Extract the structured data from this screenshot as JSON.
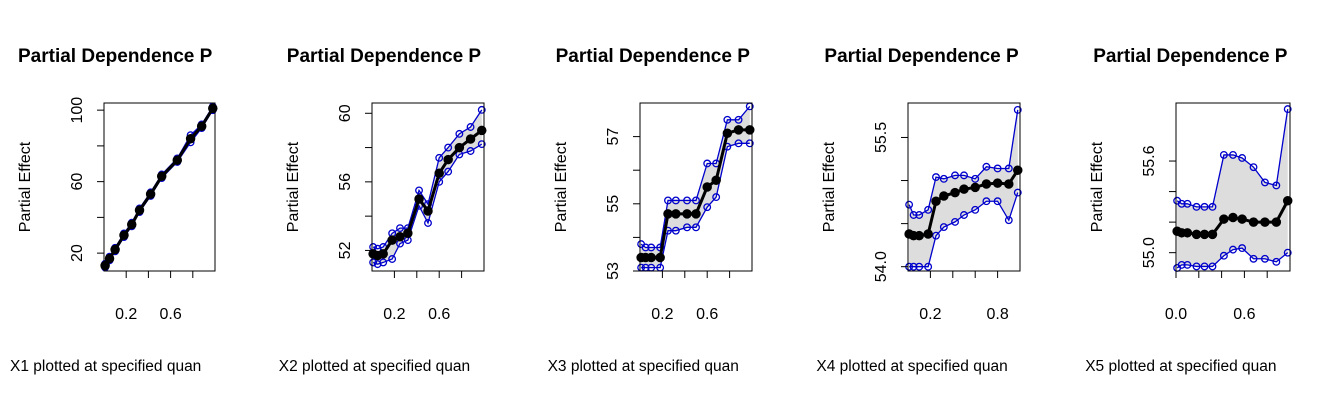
{
  "colors": {
    "ci_line": "#0000CC",
    "ci_fill": "#DDDDDD",
    "main": "#000000"
  },
  "chart_data": [
    {
      "type": "line",
      "title": "Partial Dependence P",
      "xlabel": "X1 plotted at specified quan",
      "ylabel": "Partial Effect",
      "xlim": [
        0.0,
        1.0
      ],
      "ylim": [
        10,
        104
      ],
      "xticks": [
        0.2,
        0.4,
        0.6,
        0.8
      ],
      "xtick_labels": [
        "0.2",
        "",
        "0.6",
        ""
      ],
      "yticks": [
        20,
        40,
        60,
        80,
        100
      ],
      "ytick_labels": [
        "20",
        "",
        "60",
        "",
        "100"
      ],
      "series": [
        {
          "x": [
            0.01,
            0.05,
            0.1,
            0.18,
            0.25,
            0.32,
            0.42,
            0.52,
            0.66,
            0.78,
            0.88,
            0.98
          ],
          "values": [
            13,
            17,
            22,
            30,
            36,
            44,
            53,
            63,
            72,
            84,
            91,
            101
          ]
        },
        {
          "x": [
            0.01,
            0.05,
            0.1,
            0.18,
            0.25,
            0.32,
            0.42,
            0.52,
            0.66,
            0.78,
            0.88,
            0.98
          ],
          "values": [
            12,
            16,
            21,
            29,
            35,
            43,
            52,
            62,
            71,
            82,
            90,
            100
          ]
        },
        {
          "x": [
            0.01,
            0.05,
            0.1,
            0.18,
            0.25,
            0.32,
            0.42,
            0.52,
            0.66,
            0.78,
            0.88,
            0.98
          ],
          "values": [
            14,
            18,
            23,
            31,
            37,
            45,
            54,
            64,
            73,
            86,
            92,
            102
          ]
        }
      ]
    },
    {
      "type": "line",
      "title": "Partial Dependence P",
      "xlabel": "X2 plotted at specified quan",
      "ylabel": "Partial Effect",
      "xlim": [
        0.0,
        1.0
      ],
      "ylim": [
        50.8,
        60.6
      ],
      "xticks": [
        0.2,
        0.4,
        0.6,
        0.8
      ],
      "xtick_labels": [
        "0.2",
        "",
        "0.6",
        ""
      ],
      "yticks": [
        52,
        54,
        56,
        58,
        60
      ],
      "ytick_labels": [
        "52",
        "",
        "56",
        "",
        "60"
      ],
      "series": [
        {
          "x": [
            0.01,
            0.05,
            0.1,
            0.18,
            0.25,
            0.32,
            0.42,
            0.5,
            0.6,
            0.68,
            0.78,
            0.88,
            0.98
          ],
          "values": [
            51.8,
            51.7,
            51.8,
            52.6,
            52.8,
            53.0,
            55.0,
            54.3,
            56.5,
            57.3,
            58.0,
            58.5,
            59.0
          ]
        },
        {
          "x": [
            0.01,
            0.05,
            0.1,
            0.18,
            0.25,
            0.32,
            0.42,
            0.5,
            0.6,
            0.68,
            0.78,
            0.88,
            0.98
          ],
          "values": [
            51.3,
            51.2,
            51.3,
            51.5,
            52.4,
            52.6,
            54.6,
            53.6,
            56.0,
            56.6,
            57.6,
            57.8,
            58.2
          ]
        },
        {
          "x": [
            0.01,
            0.05,
            0.1,
            0.18,
            0.25,
            0.32,
            0.42,
            0.5,
            0.6,
            0.68,
            0.78,
            0.88,
            0.98
          ],
          "values": [
            52.2,
            52.1,
            52.2,
            53.0,
            53.3,
            53.3,
            55.5,
            54.7,
            57.4,
            58.0,
            58.8,
            59.2,
            60.2
          ]
        }
      ]
    },
    {
      "type": "line",
      "title": "Partial Dependence P",
      "xlabel": "X3 plotted at specified quan",
      "ylabel": "Partial Effect",
      "xlim": [
        0.0,
        1.0
      ],
      "ylim": [
        53,
        58
      ],
      "xticks": [
        0.2,
        0.4,
        0.6,
        0.8
      ],
      "xtick_labels": [
        "0.2",
        "",
        "0.6",
        ""
      ],
      "yticks": [
        53,
        54,
        55,
        56,
        57
      ],
      "ytick_labels": [
        "53",
        "",
        "55",
        "",
        "57"
      ],
      "series": [
        {
          "x": [
            0.01,
            0.05,
            0.1,
            0.18,
            0.25,
            0.32,
            0.42,
            0.5,
            0.6,
            0.68,
            0.78,
            0.88,
            0.98
          ],
          "values": [
            53.4,
            53.4,
            53.4,
            53.4,
            54.7,
            54.7,
            54.7,
            54.7,
            55.5,
            55.7,
            57.1,
            57.2,
            57.2
          ]
        },
        {
          "x": [
            0.01,
            0.05,
            0.1,
            0.18,
            0.25,
            0.32,
            0.42,
            0.5,
            0.6,
            0.68,
            0.78,
            0.88,
            0.98
          ],
          "values": [
            53.1,
            53.1,
            53.1,
            53.1,
            54.2,
            54.2,
            54.3,
            54.3,
            54.9,
            55.2,
            56.7,
            56.8,
            56.8
          ]
        },
        {
          "x": [
            0.01,
            0.05,
            0.1,
            0.18,
            0.25,
            0.32,
            0.42,
            0.5,
            0.6,
            0.68,
            0.78,
            0.88,
            0.98
          ],
          "values": [
            53.8,
            53.7,
            53.7,
            53.7,
            55.1,
            55.1,
            55.1,
            55.1,
            56.2,
            56.2,
            57.5,
            57.5,
            57.9
          ]
        }
      ]
    },
    {
      "type": "line",
      "title": "Partial Dependence P",
      "xlabel": "X4 plotted at specified quan",
      "ylabel": "Partial Effect",
      "xlim": [
        0.0,
        1.0
      ],
      "ylim": [
        53.95,
        55.9
      ],
      "xticks": [
        0.2,
        0.4,
        0.6,
        0.8
      ],
      "xtick_labels": [
        "0.2",
        "",
        "",
        "0.8"
      ],
      "yticks": [
        54.0,
        54.5,
        55.0,
        55.5
      ],
      "ytick_labels": [
        "54.0",
        "",
        "",
        "55.5"
      ],
      "series": [
        {
          "x": [
            0.01,
            0.05,
            0.1,
            0.18,
            0.25,
            0.32,
            0.42,
            0.5,
            0.6,
            0.7,
            0.8,
            0.9,
            0.98
          ],
          "values": [
            54.38,
            54.36,
            54.36,
            54.38,
            54.76,
            54.82,
            54.86,
            54.9,
            54.92,
            54.96,
            54.97,
            54.96,
            55.12
          ]
        },
        {
          "x": [
            0.01,
            0.05,
            0.1,
            0.18,
            0.25,
            0.32,
            0.42,
            0.5,
            0.6,
            0.7,
            0.8,
            0.9,
            0.98
          ],
          "values": [
            54.0,
            54.0,
            54.0,
            54.0,
            54.36,
            54.46,
            54.52,
            54.6,
            54.66,
            54.76,
            54.76,
            54.54,
            54.86
          ]
        },
        {
          "x": [
            0.01,
            0.05,
            0.1,
            0.18,
            0.25,
            0.32,
            0.42,
            0.5,
            0.6,
            0.7,
            0.8,
            0.9,
            0.98
          ],
          "values": [
            54.72,
            54.6,
            54.6,
            54.66,
            55.04,
            55.02,
            55.06,
            55.06,
            55.02,
            55.16,
            55.14,
            55.14,
            55.82
          ]
        }
      ]
    },
    {
      "type": "line",
      "title": "Partial Dependence P",
      "xlabel": "X5 plotted at specified quan",
      "ylabel": "Partial Effect",
      "xlim": [
        0.0,
        1.0
      ],
      "ylim": [
        54.88,
        55.98
      ],
      "xticks": [
        0.0,
        0.2,
        0.4,
        0.6,
        0.8
      ],
      "xtick_labels": [
        "0.0",
        "",
        "",
        "0.6",
        ""
      ],
      "yticks": [
        55.0,
        55.2,
        55.4,
        55.6
      ],
      "ytick_labels": [
        "55.0",
        "",
        "",
        "55.6"
      ],
      "series": [
        {
          "x": [
            0.01,
            0.05,
            0.1,
            0.18,
            0.25,
            0.32,
            0.42,
            0.5,
            0.58,
            0.68,
            0.78,
            0.88,
            0.98
          ],
          "values": [
            55.14,
            55.13,
            55.13,
            55.12,
            55.12,
            55.12,
            55.22,
            55.23,
            55.22,
            55.2,
            55.2,
            55.2,
            55.34
          ]
        },
        {
          "x": [
            0.01,
            0.05,
            0.1,
            0.18,
            0.25,
            0.32,
            0.42,
            0.5,
            0.58,
            0.68,
            0.78,
            0.88,
            0.98
          ],
          "values": [
            54.9,
            54.92,
            54.92,
            54.91,
            54.91,
            54.91,
            54.98,
            55.02,
            55.03,
            54.96,
            54.96,
            54.94,
            55.0
          ]
        },
        {
          "x": [
            0.01,
            0.05,
            0.1,
            0.18,
            0.25,
            0.32,
            0.42,
            0.5,
            0.58,
            0.68,
            0.78,
            0.88,
            0.98
          ],
          "values": [
            55.34,
            55.32,
            55.32,
            55.3,
            55.3,
            55.3,
            55.64,
            55.64,
            55.62,
            55.56,
            55.46,
            55.44,
            55.94
          ]
        }
      ]
    }
  ]
}
